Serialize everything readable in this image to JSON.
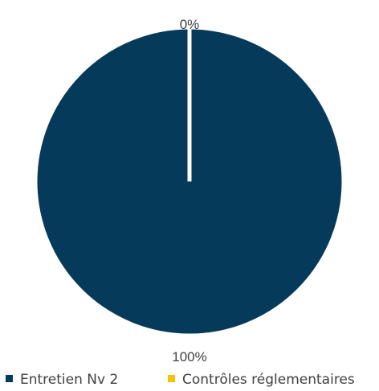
{
  "chart_data": {
    "type": "pie",
    "categories": [
      "Entretien Nv 2",
      "Contrôles réglementaires"
    ],
    "values": [
      100,
      0
    ],
    "data_labels": [
      "100%",
      "0%"
    ],
    "colors": [
      "#053a5a",
      "#f5c200"
    ],
    "slice_border_color": "#ffffff",
    "start_angle_deg": 0,
    "direction": "clockwise",
    "legend_position": "bottom"
  }
}
